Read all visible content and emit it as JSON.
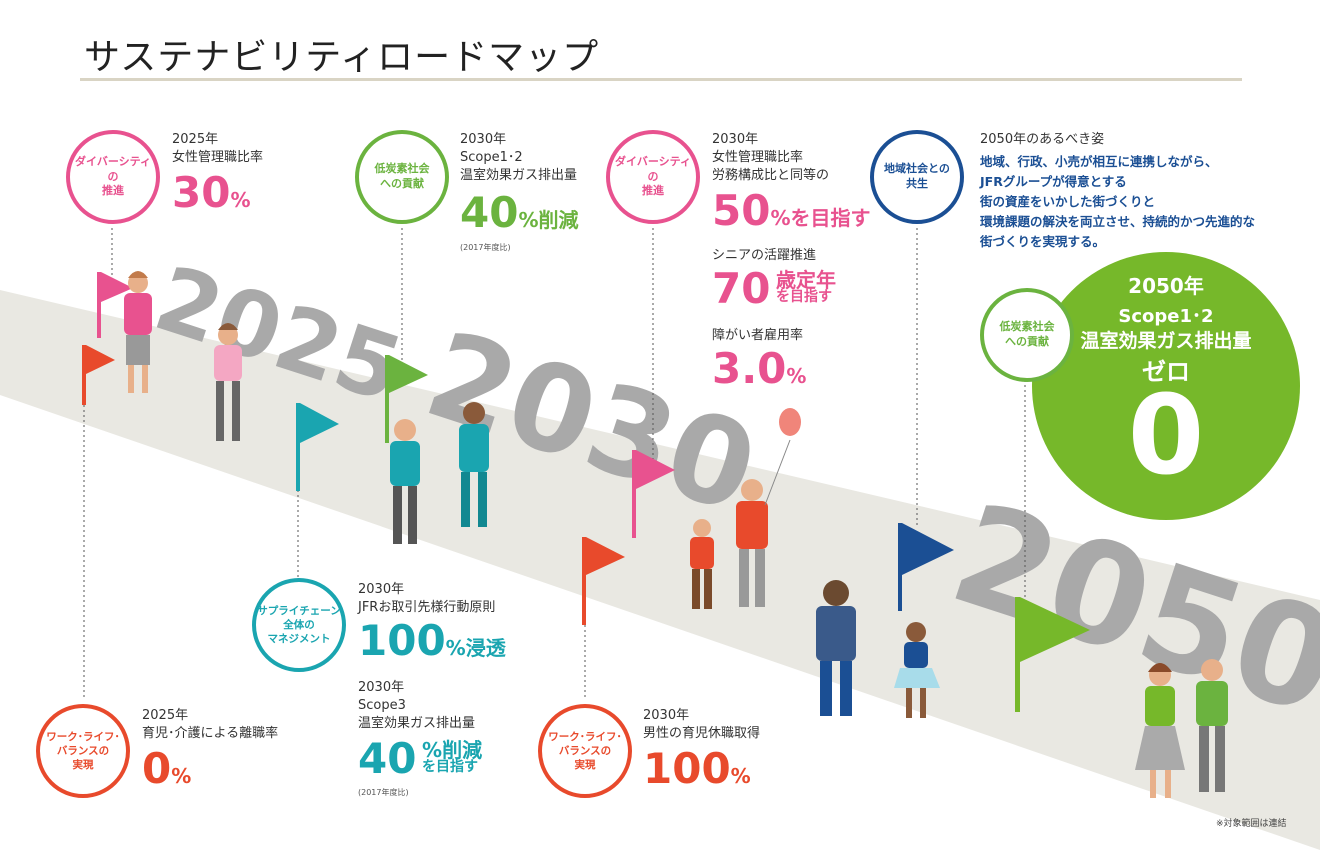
{
  "title": "サステナビリティロードマップ",
  "colors": {
    "pink": "#e8528f",
    "green": "#6bb33f",
    "teal": "#1aa5b0",
    "red": "#e84a2c",
    "navy": "#1b4f94",
    "road": "#e9e8e2",
    "years": "#a9a9a9"
  },
  "years": [
    "2025",
    "2030",
    "2050"
  ],
  "items": {
    "diversity_2025": {
      "tag": "ダイバーシティの\n推進",
      "year": "2025年",
      "label": "女性管理職比率",
      "value": "30",
      "unit": "%"
    },
    "lowcarbon_2030": {
      "tag": "低炭素社会\nへの貢献",
      "year": "2030年",
      "label1": "Scope1･2",
      "label2": "温室効果ガス排出量",
      "value": "40",
      "unit": "%削減",
      "note": "(2017年度比)"
    },
    "diversity_2030": {
      "tag": "ダイバーシティの\n推進",
      "year": "2030年",
      "label1": "女性管理職比率",
      "label2": "労務構成比と同等の",
      "value": "50",
      "unit": "%を目指す",
      "senior_label": "シニアの活躍推進",
      "senior_value": "70",
      "senior_unit1": "歳定年",
      "senior_unit2": "を目指す",
      "disabled_label": "障がい者雇用率",
      "disabled_value": "3.0",
      "disabled_unit": "%"
    },
    "community_2050": {
      "tag": "地域社会との\n共生",
      "year": "2050年のあるべき姿",
      "lines": [
        "地域、行政、小売が相互に連携しながら、",
        "JFRグループが得意とする",
        "街の資産をいかした街づくりと",
        "環境課題の解決を両立させ、持続的かつ先進的な",
        "街づくりを実現する。"
      ]
    },
    "lowcarbon_2050": {
      "tag": "低炭素社会\nへの貢献",
      "year": "2050年",
      "label1": "Scope1･2",
      "label2": "温室効果ガス排出量",
      "label3": "ゼロ",
      "value": "0"
    },
    "supply_2030": {
      "tag": "サプライチェーン\n全体の\nマネジメント",
      "year": "2030年",
      "label": "JFRお取引先様行動原則",
      "value": "100",
      "unit": "%浸透",
      "year2": "2030年",
      "label2a": "Scope3",
      "label2b": "温室効果ガス排出量",
      "value2": "40",
      "unit2a": "%削減",
      "unit2b": "を目指す",
      "note2": "(2017年度比)"
    },
    "wlb_2025": {
      "tag": "ワーク･ライフ･\nバランスの\n実現",
      "year": "2025年",
      "label": "育児･介護による離職率",
      "value": "0",
      "unit": "%"
    },
    "wlb_2030": {
      "tag": "ワーク･ライフ･\nバランスの\n実現",
      "year": "2030年",
      "label": "男性の育児休職取得",
      "value": "100",
      "unit": "%"
    }
  },
  "footnote": "※対象範囲は連結"
}
